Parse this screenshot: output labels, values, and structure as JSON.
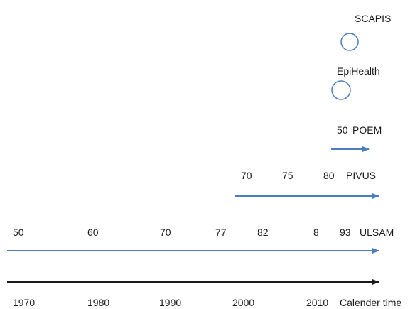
{
  "studies": {
    "scapis": {
      "name": "SCAPIS"
    },
    "epihealth": {
      "name": "EpiHealth"
    },
    "poem": {
      "name": "POEM",
      "ages": [
        "50"
      ]
    },
    "pivus": {
      "name": "PIVUS",
      "ages": [
        "70",
        "75",
        "80"
      ]
    },
    "ulsam": {
      "name": "ULSAM",
      "ages": [
        "50",
        "60",
        "70",
        "77",
        "82",
        "8",
        "93"
      ]
    }
  },
  "timeline": {
    "years": [
      "1970",
      "1980",
      "1990",
      "2000",
      "2010"
    ],
    "axis_label": "Calender time"
  },
  "colors": {
    "study_arrow": "#4a7ec0",
    "axis_arrow": "#1a1a1a",
    "circle_stroke": "#4a7ec0",
    "text": "#1a1a1a"
  }
}
